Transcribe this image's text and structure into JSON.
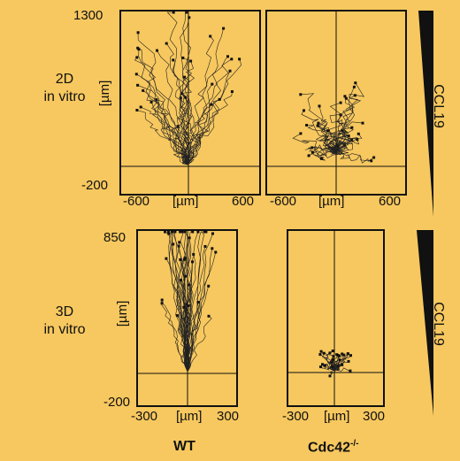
{
  "row_labels": {
    "top": [
      "2D",
      "in vitro"
    ],
    "bottom": [
      "3D",
      "in vitro"
    ]
  },
  "top_row": {
    "y_max": "1300",
    "y_min": "-200",
    "y_unit": "[µm]",
    "x_ticks": [
      "-600",
      "600"
    ],
    "x_unit": "[µm]",
    "gradient_label": "CCL19"
  },
  "bottom_row": {
    "y_max": "850",
    "y_min": "-200",
    "y_unit": "[µm]",
    "x_ticks": [
      "-300",
      "300"
    ],
    "x_unit": "[µm]",
    "gradient_label": "CCL19"
  },
  "column_labels": {
    "left": "WT",
    "right_base": "Cdc42",
    "right_sup": "-/-"
  },
  "colors": {
    "background": "#f7c85f",
    "ink": "#111111"
  }
}
